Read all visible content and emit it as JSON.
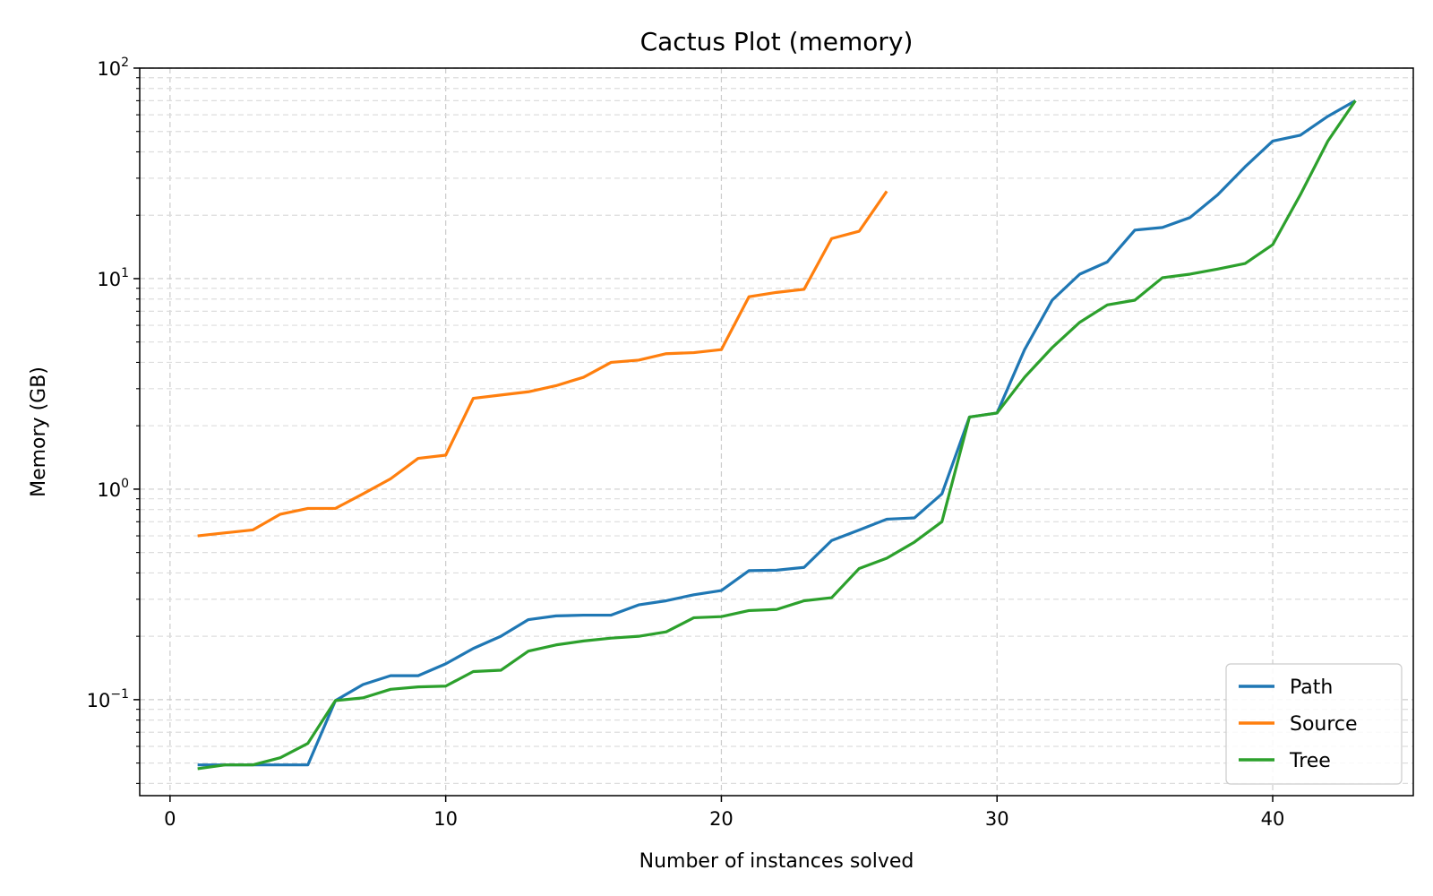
{
  "chart_data": {
    "type": "line",
    "title": "Cactus Plot (memory)",
    "xlabel": "Number of instances solved",
    "ylabel": "Memory (GB)",
    "xlim": [
      -1.1,
      45.1
    ],
    "ylim": [
      0.035,
      100
    ],
    "yscale": "log",
    "x_ticks": [
      0,
      10,
      20,
      30,
      40
    ],
    "x_tick_labels": [
      "0",
      "10",
      "20",
      "30",
      "40"
    ],
    "y_ticks": [
      {
        "value": 0.1,
        "base": "10",
        "exp": "−1"
      },
      {
        "value": 1,
        "base": "10",
        "exp": "0"
      },
      {
        "value": 10,
        "base": "10",
        "exp": "1"
      },
      {
        "value": 100,
        "base": "10",
        "exp": "2"
      }
    ],
    "grid": true,
    "legend_position": "lower-right",
    "series": [
      {
        "name": "Path",
        "color": "#1f77b4",
        "x": [
          1,
          2,
          3,
          4,
          5,
          6,
          7,
          8,
          9,
          10,
          11,
          12,
          13,
          14,
          15,
          16,
          17,
          18,
          19,
          20,
          21,
          22,
          23,
          24,
          25,
          26,
          27,
          28,
          29,
          30,
          31,
          32,
          33,
          34,
          35,
          36,
          37,
          38,
          39,
          40,
          41,
          42,
          43
        ],
        "values": [
          0.049,
          0.049,
          0.049,
          0.049,
          0.049,
          0.099,
          0.118,
          0.13,
          0.13,
          0.148,
          0.175,
          0.2,
          0.24,
          0.25,
          0.252,
          0.252,
          0.282,
          0.295,
          0.315,
          0.33,
          0.41,
          0.412,
          0.425,
          0.57,
          0.64,
          0.72,
          0.73,
          0.95,
          2.2,
          2.3,
          4.6,
          7.9,
          10.5,
          12,
          17,
          17.5,
          19.5,
          25,
          34,
          45,
          48,
          59,
          70
        ]
      },
      {
        "name": "Source",
        "color": "#ff7f0e",
        "x": [
          1,
          2,
          3,
          4,
          5,
          6,
          7,
          8,
          9,
          10,
          11,
          12,
          13,
          14,
          15,
          16,
          17,
          18,
          19,
          20,
          21,
          22,
          23,
          24,
          25,
          26
        ],
        "values": [
          0.6,
          0.62,
          0.64,
          0.76,
          0.81,
          0.81,
          0.95,
          1.12,
          1.4,
          1.45,
          2.7,
          2.8,
          2.9,
          3.1,
          3.4,
          4.0,
          4.1,
          4.4,
          4.45,
          4.6,
          8.2,
          8.6,
          8.9,
          15.5,
          16.8,
          26
        ]
      },
      {
        "name": "Tree",
        "color": "#2ca02c",
        "x": [
          1,
          2,
          3,
          4,
          5,
          6,
          7,
          8,
          9,
          10,
          11,
          12,
          13,
          14,
          15,
          16,
          17,
          18,
          19,
          20,
          21,
          22,
          23,
          24,
          25,
          26,
          27,
          28,
          29,
          30,
          31,
          32,
          33,
          34,
          35,
          36,
          37,
          38,
          39,
          40,
          41,
          42,
          43
        ],
        "values": [
          0.047,
          0.049,
          0.049,
          0.053,
          0.062,
          0.099,
          0.102,
          0.112,
          0.115,
          0.116,
          0.136,
          0.138,
          0.17,
          0.182,
          0.19,
          0.196,
          0.2,
          0.21,
          0.245,
          0.248,
          0.265,
          0.268,
          0.295,
          0.305,
          0.42,
          0.47,
          0.56,
          0.7,
          2.2,
          2.3,
          3.4,
          4.7,
          6.2,
          7.5,
          7.9,
          10.1,
          10.5,
          11.1,
          11.8,
          14.5,
          25,
          45,
          70
        ]
      }
    ]
  }
}
